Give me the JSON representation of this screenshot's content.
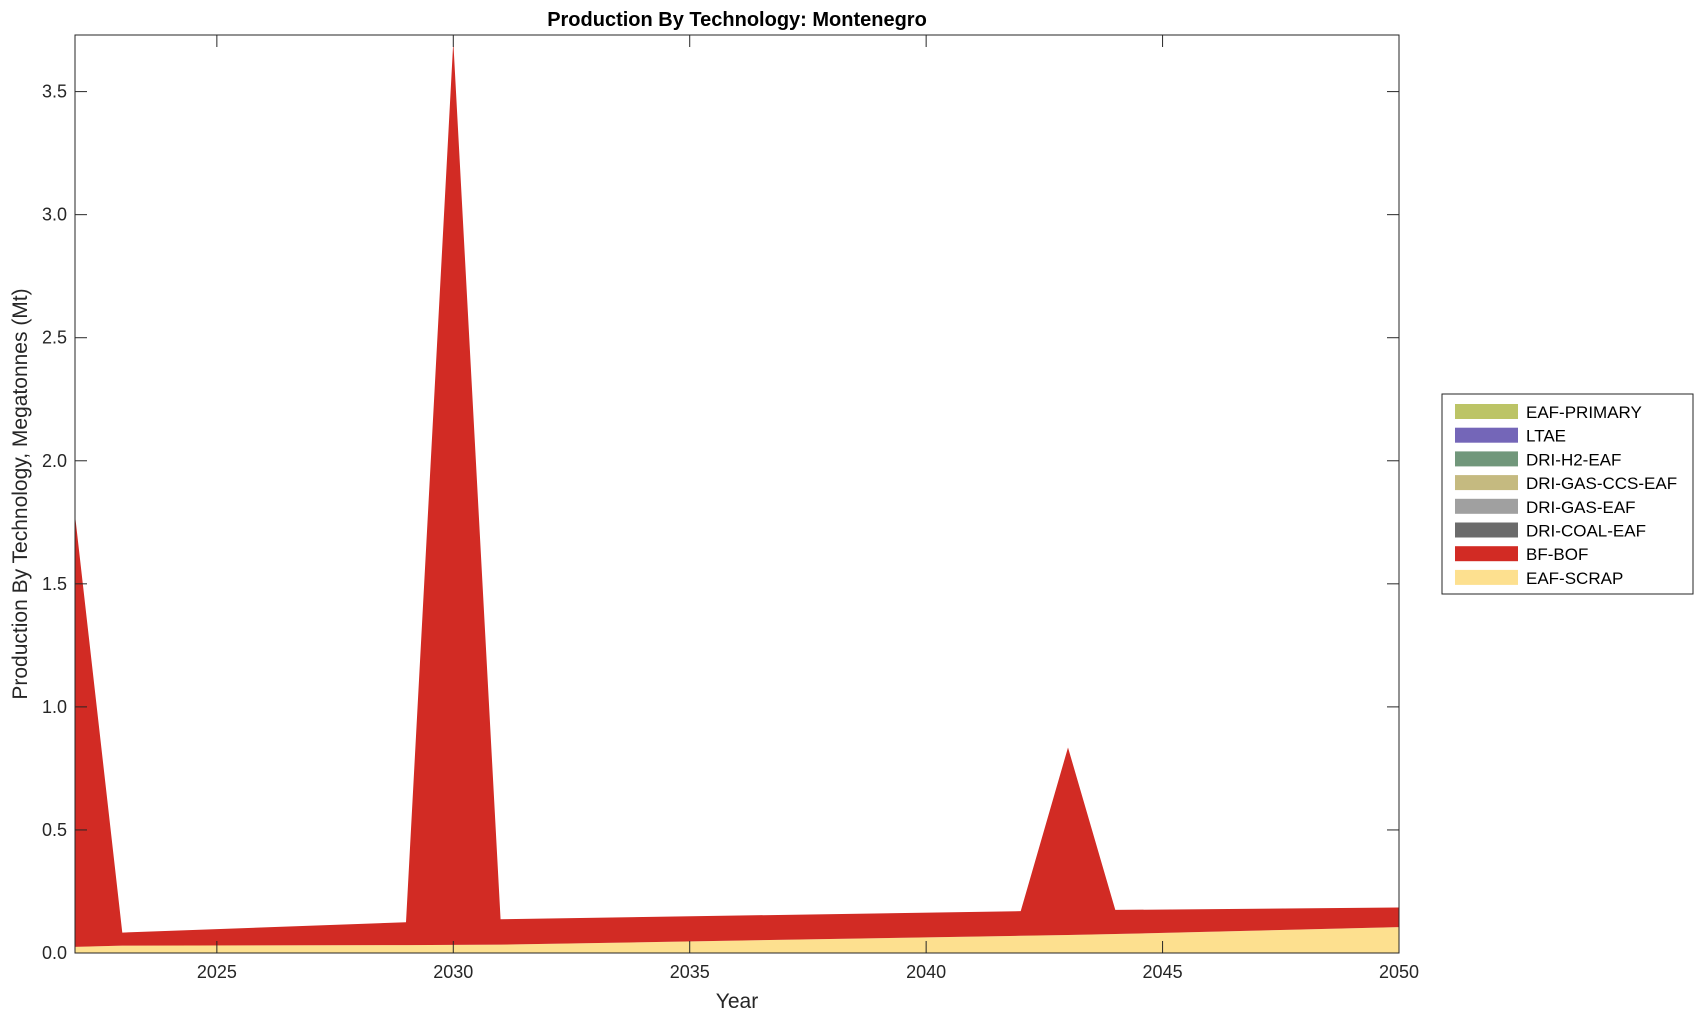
{
  "chart_data": {
    "type": "area",
    "stacked": true,
    "title": "Production By Technology: Montenegro",
    "xlabel": "Year",
    "ylabel": "Production By Technology, Megatonnes (Mt)",
    "xlim": [
      2022,
      2050
    ],
    "ylim": [
      0,
      3.73
    ],
    "x_ticks": [
      2025,
      2030,
      2035,
      2040,
      2045,
      2050
    ],
    "x_tick_labels": [
      "2025",
      "2030",
      "2035",
      "2040",
      "2045",
      "2050"
    ],
    "y_ticks": [
      0,
      0.5,
      1.0,
      1.5,
      2.0,
      2.5,
      3.0,
      3.5
    ],
    "y_tick_labels": [
      "0.0",
      "0.5",
      "1.0",
      "1.5",
      "2.0",
      "2.5",
      "3.0",
      "3.5"
    ],
    "grid": false,
    "legend_position": "outside-right",
    "x": [
      2022,
      2023,
      2029,
      2030,
      2031,
      2042,
      2043,
      2044,
      2050
    ],
    "series": [
      {
        "name": "EAF-SCRAP",
        "color": "#FDE08F",
        "values": [
          0.025,
          0.03,
          0.032,
          0.033,
          0.034,
          0.07,
          0.073,
          0.077,
          0.105
        ]
      },
      {
        "name": "BF-BOF",
        "color": "#D22B24",
        "values": [
          1.755,
          0.053,
          0.093,
          3.67,
          0.103,
          0.1,
          0.762,
          0.098,
          0.08
        ]
      },
      {
        "name": "DRI-COAL-EAF",
        "color": "#6B6B6B",
        "values": [
          0,
          0,
          0,
          0,
          0,
          0,
          0,
          0,
          0
        ]
      },
      {
        "name": "DRI-GAS-EAF",
        "color": "#A0A0A0",
        "values": [
          0,
          0,
          0,
          0,
          0,
          0,
          0,
          0,
          0
        ]
      },
      {
        "name": "DRI-GAS-CCS-EAF",
        "color": "#C5BA80",
        "values": [
          0,
          0,
          0,
          0,
          0,
          0,
          0,
          0,
          0
        ]
      },
      {
        "name": "DRI-H2-EAF",
        "color": "#71977B",
        "values": [
          0,
          0,
          0,
          0,
          0,
          0,
          0,
          0,
          0
        ]
      },
      {
        "name": "LTAE",
        "color": "#7466B8",
        "values": [
          0,
          0,
          0,
          0,
          0,
          0,
          0,
          0,
          0
        ]
      },
      {
        "name": "EAF-PRIMARY",
        "color": "#BCC466",
        "values": [
          0,
          0,
          0,
          0,
          0,
          0,
          0,
          0,
          0
        ]
      }
    ],
    "legend_order": [
      "EAF-PRIMARY",
      "LTAE",
      "DRI-H2-EAF",
      "DRI-GAS-CCS-EAF",
      "DRI-GAS-EAF",
      "DRI-COAL-EAF",
      "BF-BOF",
      "EAF-SCRAP"
    ]
  }
}
